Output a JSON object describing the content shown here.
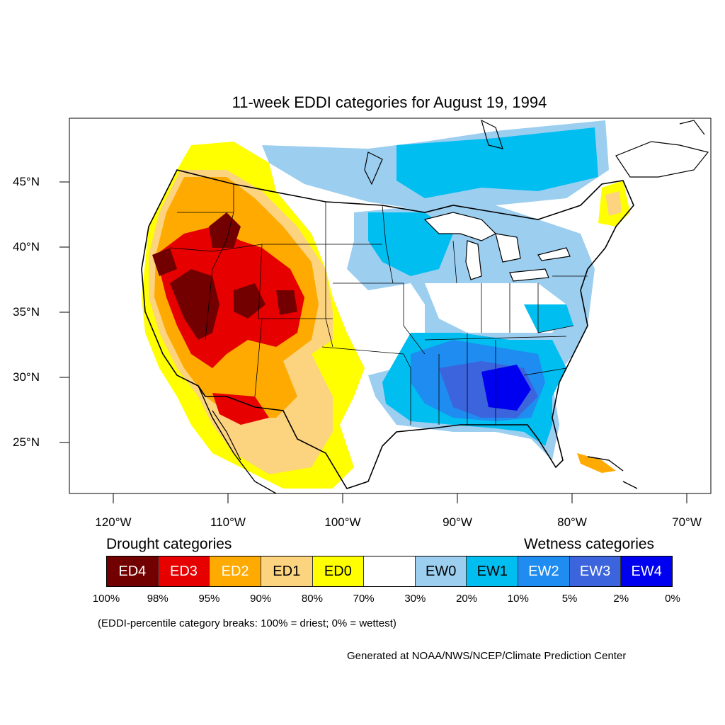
{
  "title": "11-week EDDI categories for August 19, 1994",
  "lat_labels": [
    "45°N",
    "40°N",
    "35°N",
    "30°N",
    "25°N"
  ],
  "lon_labels": [
    "120°W",
    "110°W",
    "100°W",
    "90°W",
    "80°W",
    "70°W"
  ],
  "legend": {
    "drought_title": "Drought categories",
    "wetness_title": "Wetness categories",
    "categories": [
      {
        "label": "ED4",
        "color": "#730000",
        "text_color": "#ffffff"
      },
      {
        "label": "ED3",
        "color": "#e60000",
        "text_color": "#ffffff"
      },
      {
        "label": "ED2",
        "color": "#ffaa00",
        "text_color": "#ffffff"
      },
      {
        "label": "ED1",
        "color": "#fcd37f",
        "text_color": "#000000"
      },
      {
        "label": "ED0",
        "color": "#ffff00",
        "text_color": "#000000"
      },
      {
        "label": "",
        "color": "#ffffff",
        "text_color": "#000000"
      },
      {
        "label": "EW0",
        "color": "#9ccef0",
        "text_color": "#000000"
      },
      {
        "label": "EW1",
        "color": "#00bef0",
        "text_color": "#000000"
      },
      {
        "label": "EW2",
        "color": "#1e8cf0",
        "text_color": "#ffffff"
      },
      {
        "label": "EW3",
        "color": "#3c64dc",
        "text_color": "#ffffff"
      },
      {
        "label": "EW4",
        "color": "#0000f0",
        "text_color": "#ffffff"
      }
    ],
    "breaks": [
      "100%",
      "98%",
      "95%",
      "90%",
      "80%",
      "70%",
      "30%",
      "20%",
      "10%",
      "5%",
      "2%",
      "0%"
    ]
  },
  "note": "(EDDI-percentile category breaks: 100% = driest; 0% = wettest)",
  "credit": "Generated at NOAA/NWS/NCEP/Climate Prediction Center"
}
